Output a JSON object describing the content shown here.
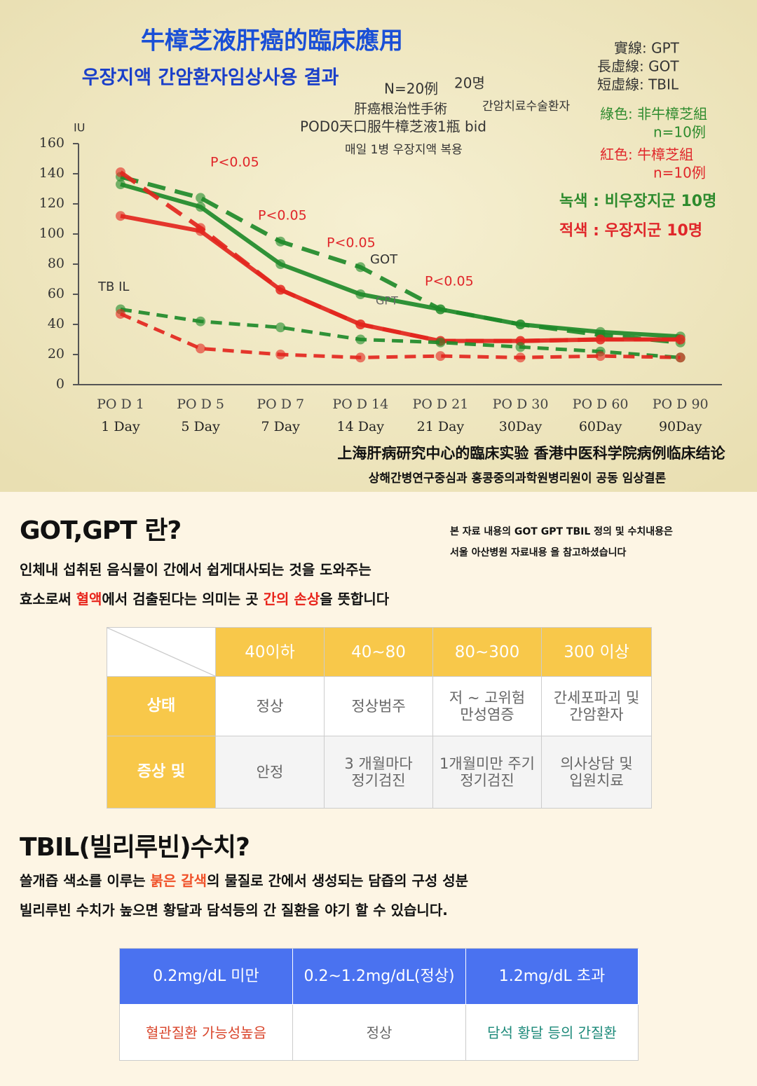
{
  "chart_data": {
    "type": "line",
    "categories": [
      "PO D 1",
      "PO D 5",
      "PO D 7",
      "PO D 14",
      "PO D 21",
      "PO D 30",
      "PO D 60",
      "PO D 90"
    ],
    "sublabels": [
      "1 Day",
      "5 Day",
      "7 Day",
      "14 Day",
      "21 Day",
      "30Day",
      "60Day",
      "90Day"
    ],
    "ylim": [
      0,
      160
    ],
    "yticks": [
      0,
      20,
      40,
      60,
      80,
      100,
      120,
      140,
      160
    ],
    "series": [
      {
        "color": "#1f8a2a",
        "style": "solid",
        "values": [
          133,
          118,
          80,
          60,
          50,
          40,
          35,
          32
        ]
      },
      {
        "color": "#1f8a2a",
        "style": "dashed",
        "values": [
          138,
          124,
          95,
          78,
          50,
          40,
          33,
          28
        ]
      },
      {
        "color": "#e3261e",
        "style": "solid",
        "values": [
          112,
          102,
          63,
          40,
          29,
          29,
          30,
          30
        ]
      },
      {
        "color": "#e3261e",
        "style": "dashed",
        "values": [
          141,
          104,
          63,
          40,
          29,
          29,
          30,
          30
        ]
      },
      {
        "color": "#1f8a2a",
        "style": "dotted",
        "values": [
          50,
          42,
          38,
          30,
          28,
          25,
          22,
          18
        ]
      },
      {
        "color": "#e3261e",
        "style": "dotted",
        "values": [
          47,
          24,
          20,
          18,
          19,
          18,
          19,
          18
        ]
      }
    ],
    "annotations": [
      "牛樟芝液肝癌的臨床應用",
      "우장지액 간암환자임상사용 결과",
      "N=20例",
      "20명",
      "肝癌根治性手術",
      "간암치료수술환자",
      "POD0天口服牛樟芝液1瓶 bid",
      "매일 1병 우장지액 복용",
      "實線: GPT",
      "長虛線: GOT",
      "短虛線: TBIL",
      "綠色: 非牛樟芝組",
      "n=10例",
      "紅色: 牛樟芝組",
      "n=10例",
      "녹색 : 비우장지군 10명",
      "적색 : 우장지군 10명",
      "P<0.05",
      "P<0.05",
      "P<0.05",
      "P<0.05",
      "GOT",
      "GPT",
      "TB IL",
      "IU",
      "上海肝病研究中心的臨床实验 香港中医科学院病例临床结论",
      "상해간병연구중심과    홍콩중의과학원병리원이 공동 임상결론"
    ]
  },
  "section1": {
    "heading": "GOT,GPT 란?",
    "note": [
      "본 자료 내용의 GOT GPT TBIL 정의 및 수치내용은",
      "서울 아산병원 자료내용 을 참고하셨습니다"
    ],
    "paragraph": [
      [
        {
          "text": "인체내 섭취된 음식물이 간에서 쉽게대사되는 것을 도와주는"
        }
      ],
      [
        {
          "text": "효소로써 "
        },
        {
          "text": "혈액",
          "color": "#e8231a"
        },
        {
          "text": "에서 검출된다는 의미는 곳 "
        },
        {
          "text": "간의 손상",
          "color": "#e8231a"
        },
        {
          "text": "을 뜻합니다"
        }
      ]
    ],
    "table": {
      "header": [
        "40이하",
        "40~80",
        "80~300",
        "300 이상"
      ],
      "rows": [
        [
          "상태",
          "정상",
          "정상범주",
          "저 ~ 고위험\n만성염증",
          "간세포파괴 및\n간암환자"
        ],
        [
          "증상 및",
          "안정",
          "3 개월마다\n정기검진",
          "1개월미만 주기\n정기검진",
          "의사상담 및\n입원치료"
        ]
      ]
    }
  },
  "section2": {
    "heading": "TBIL(빌리루빈)수치?",
    "paragraph": [
      [
        {
          "text": "쓸개즙 색소를 이루는 "
        },
        {
          "text": "붉은 갈색",
          "color": "#f0522a"
        },
        {
          "text": "의 물질로 간에서 생성되는 담즙의 구성 성분"
        }
      ],
      [
        {
          "text": "빌리루빈 수치가 높으면 황달과 담석등의 간 질환을 야기 할 수 있습니다."
        }
      ]
    ],
    "table": {
      "header": [
        "0.2mg/dL 미만",
        "0.2~1.2mg/dL(정상)",
        "1.2mg/dL 초과"
      ],
      "rows": [
        [
          {
            "text": "혈관질환 가능성높음",
            "color": "#d9452b"
          },
          {
            "text": "정상",
            "color": "#666666"
          },
          {
            "text": "담석 황달 등의 간질환",
            "color": "#1d8a7a"
          }
        ]
      ]
    }
  }
}
